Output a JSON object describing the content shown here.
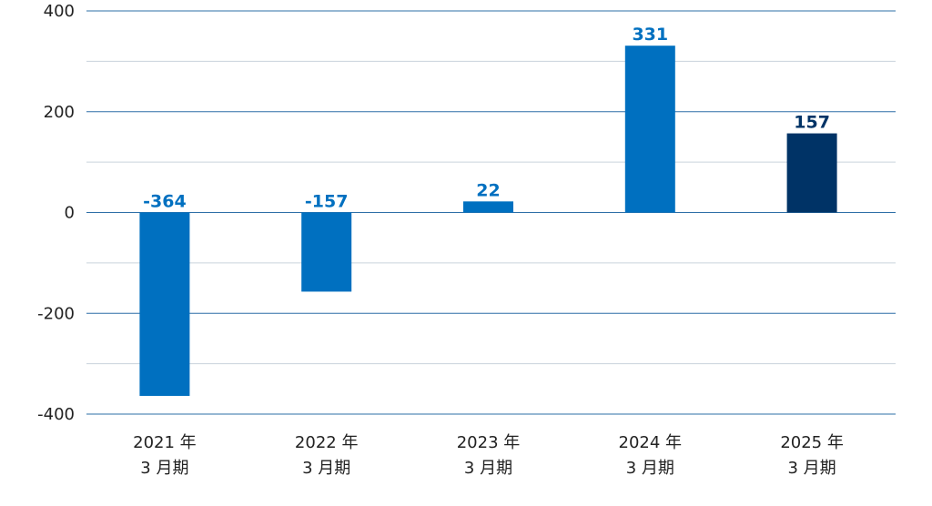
{
  "chart_data": {
    "type": "bar",
    "title": "",
    "xlabel": "",
    "ylabel": "",
    "ylim": [
      -400,
      400
    ],
    "yticks": [
      400,
      200,
      0,
      -200,
      -400
    ],
    "grid": true,
    "categories": [
      [
        "2021 年",
        "3 月期"
      ],
      [
        "2022 年",
        "3 月期"
      ],
      [
        "2023 年",
        "3 月期"
      ],
      [
        "2024 年",
        "3 月期"
      ],
      [
        "2025 年",
        "3 月期"
      ]
    ],
    "values": [
      -364,
      -157,
      22,
      331,
      157
    ],
    "data_labels": [
      "-364",
      "-157",
      "22",
      "331",
      "157"
    ],
    "colors": {
      "bar": "#0070c0",
      "bar_highlight": "#003366",
      "major_grid": "#2e6fa7",
      "minor_grid": "#c9d3dc"
    },
    "bar_colors": [
      "bar",
      "bar",
      "bar",
      "bar",
      "bar_highlight"
    ]
  }
}
